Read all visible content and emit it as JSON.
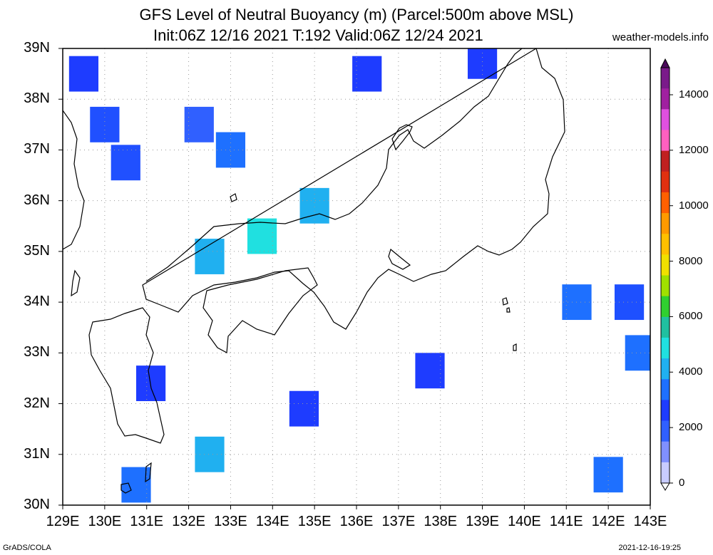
{
  "header": {
    "title_line1": "GFS Level of Neutral Buoyancy (m) (Parcel:500m above MSL)",
    "title_line2": "Init:06Z 12/16 2021 T:192 Valid:06Z 12/24 2021",
    "site": "weather-models.info"
  },
  "footer": {
    "left": "GrADS/COLA",
    "right": "2021-12-16-19:25"
  },
  "axes": {
    "lat_labels": [
      "39N",
      "38N",
      "37N",
      "36N",
      "35N",
      "34N",
      "33N",
      "32N",
      "31N",
      "30N"
    ],
    "lon_labels": [
      "129E",
      "130E",
      "131E",
      "132E",
      "133E",
      "134E",
      "135E",
      "136E",
      "137E",
      "138E",
      "139E",
      "140E",
      "141E",
      "142E",
      "143E"
    ]
  },
  "colorbar": {
    "labels": [
      "14000",
      "12000",
      "10000",
      "8000",
      "6000",
      "4000",
      "2000",
      "0"
    ],
    "colors": [
      "#7a1a8a",
      "#a020a0",
      "#e050e0",
      "#ff60c0",
      "#c02020",
      "#e03010",
      "#ff6000",
      "#ff9a00",
      "#ffc000",
      "#f0e000",
      "#a0e000",
      "#30d030",
      "#20c0a0",
      "#20e0e0",
      "#20b0f0",
      "#1e70ff",
      "#1e3cff",
      "#3060ff",
      "#8090ff",
      "#c8ccff"
    ]
  },
  "buoyancy_cells": [
    {
      "lon": 129.5,
      "lat": 38.5,
      "color": "#1e3cff"
    },
    {
      "lon": 130.0,
      "lat": 37.5,
      "color": "#2050ff"
    },
    {
      "lon": 130.5,
      "lat": 36.75,
      "color": "#2050ff"
    },
    {
      "lon": 132.25,
      "lat": 37.5,
      "color": "#3060ff"
    },
    {
      "lon": 133.0,
      "lat": 37.0,
      "color": "#1e70ff"
    },
    {
      "lon": 133.75,
      "lat": 35.3,
      "color": "#20e0e0"
    },
    {
      "lon": 135.0,
      "lat": 35.9,
      "color": "#20b0f0"
    },
    {
      "lon": 132.5,
      "lat": 34.9,
      "color": "#20b0f0"
    },
    {
      "lon": 136.25,
      "lat": 38.5,
      "color": "#1e3cff"
    },
    {
      "lon": 139.0,
      "lat": 38.75,
      "color": "#1e3cff"
    },
    {
      "lon": 141.25,
      "lat": 34.0,
      "color": "#1e70ff"
    },
    {
      "lon": 142.5,
      "lat": 34.0,
      "color": "#1e50ff"
    },
    {
      "lon": 142.75,
      "lat": 33.0,
      "color": "#1e70ff"
    },
    {
      "lon": 137.75,
      "lat": 32.65,
      "color": "#1e3cff"
    },
    {
      "lon": 134.75,
      "lat": 31.9,
      "color": "#1e3cff"
    },
    {
      "lon": 131.1,
      "lat": 32.4,
      "color": "#1e3cff"
    },
    {
      "lon": 132.5,
      "lat": 31.0,
      "color": "#20b0f0"
    },
    {
      "lon": 130.75,
      "lat": 30.4,
      "color": "#1e70ff"
    },
    {
      "lon": 142.0,
      "lat": 30.6,
      "color": "#1e70ff"
    }
  ]
}
